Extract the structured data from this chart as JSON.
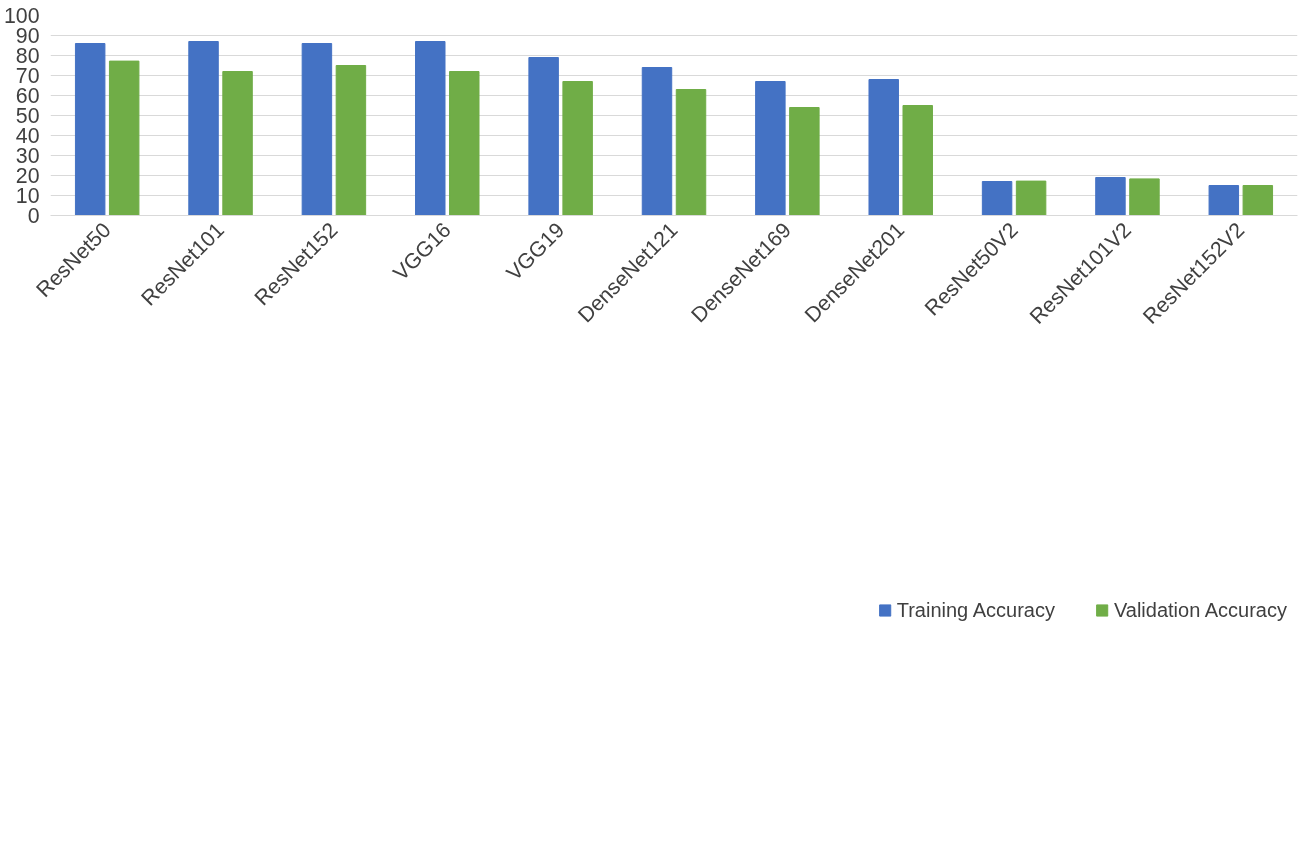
{
  "chart_data": {
    "type": "bar",
    "categories": [
      "ResNet50",
      "ResNet101",
      "ResNet152",
      "VGG16",
      "VGG19",
      "DenseNet121",
      "DenseNet169",
      "DenseNet201",
      "ResNet50V2",
      "ResNet101V2",
      "ResNet152V2"
    ],
    "series": [
      {
        "name": "Training Accuracy",
        "color": "#4472c4",
        "values": [
          86,
          87,
          86,
          87,
          79,
          74,
          67,
          68,
          17,
          19,
          15
        ]
      },
      {
        "name": "Validation Accuracy",
        "color": "#70ad47",
        "values": [
          77.2,
          72,
          75,
          72,
          67,
          63,
          54,
          55,
          17.2,
          18.3,
          15
        ]
      }
    ],
    "ylim": [
      0,
      100
    ],
    "yticks": [
      0,
      10,
      20,
      30,
      40,
      50,
      60,
      70,
      80,
      90,
      100
    ],
    "grid": "y",
    "legend": "bottom"
  }
}
